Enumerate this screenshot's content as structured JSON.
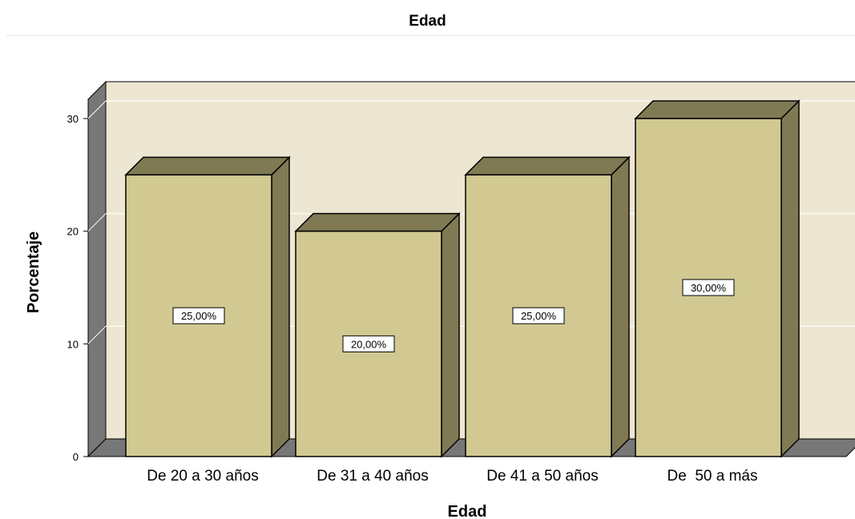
{
  "chart_data": {
    "type": "bar",
    "title": "Edad",
    "xlabel": "Edad",
    "ylabel": "Porcentaje",
    "categories": [
      "De 20 a 30 años",
      "De 31 a 40 años",
      "De 41 a 50 años",
      "De  50 a más"
    ],
    "values": [
      25,
      20,
      25,
      30
    ],
    "data_labels": [
      "25,00%",
      "20,00%",
      "25,00%",
      "30,00%"
    ],
    "ylim": [
      0,
      30
    ],
    "yticks": [
      "0",
      "10",
      "20",
      "30"
    ],
    "grid": true,
    "style": "3d",
    "colors": {
      "bar_front": "#d1c991",
      "bar_side": "#7f7a54",
      "wall_back": "#ede6d2",
      "wall_side": "#777777",
      "floor": "#777777"
    }
  }
}
